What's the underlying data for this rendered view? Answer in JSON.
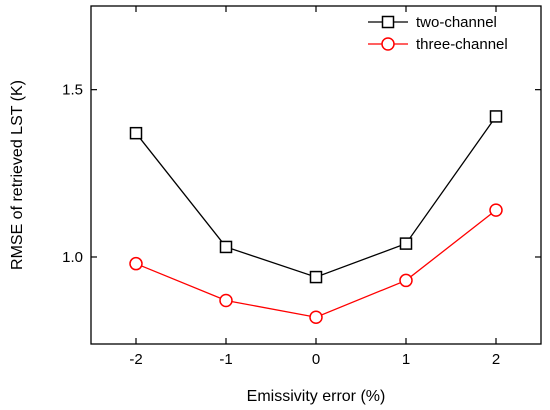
{
  "chart_data": {
    "type": "line",
    "title": "",
    "xlabel": "Emissivity error (%)",
    "ylabel": "RMSE of retrieved LST (K)",
    "x": [
      -2,
      -1,
      0,
      1,
      2
    ],
    "xlim": [
      -2.5,
      2.5
    ],
    "ylim": [
      0.74,
      1.75
    ],
    "xticks": [
      -2,
      -1,
      0,
      1,
      2
    ],
    "xtick_labels": [
      "-2",
      "-1",
      "0",
      "1",
      "2"
    ],
    "yticks": [
      1.0,
      1.5
    ],
    "ytick_labels": [
      "1.0",
      "1.5"
    ],
    "grid": false,
    "legend_position": "top-right",
    "series": [
      {
        "name": "two-channel",
        "values": [
          1.37,
          1.03,
          0.94,
          1.04,
          1.42
        ],
        "color": "#000000",
        "marker": "square"
      },
      {
        "name": "three-channel",
        "values": [
          0.98,
          0.87,
          0.82,
          0.93,
          1.14
        ],
        "color": "#ff0000",
        "marker": "circle"
      }
    ]
  }
}
